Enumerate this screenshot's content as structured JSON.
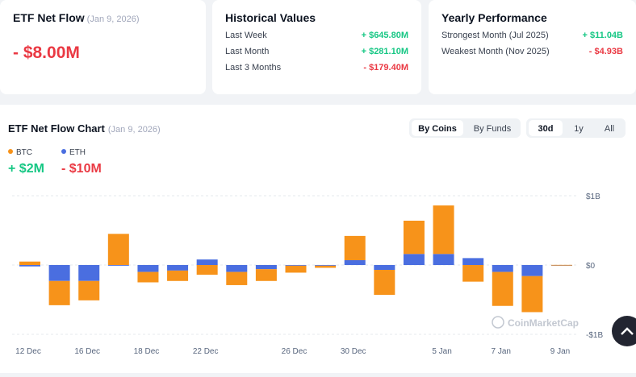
{
  "cards": [
    {
      "title": "ETF Net Flow",
      "date": "(Jan 9, 2026)",
      "value": "- $8.00M"
    },
    {
      "title": "Historical Values",
      "rows": [
        [
          "Last Week",
          "+ $645.80M"
        ],
        [
          "Last Month",
          "+ $281.10M"
        ],
        [
          "Last 3 Months",
          "- $179.40M"
        ]
      ]
    },
    {
      "title": "Yearly Performance",
      "rows": [
        [
          "Strongest Month (Jul 2025)",
          "+ $11.04B"
        ],
        [
          "Weakest Month (Nov 2025)",
          "- $4.93B"
        ]
      ]
    }
  ],
  "controls": {
    "view": [
      "By Coins",
      "By Funds"
    ],
    "range": [
      "30d",
      "1y",
      "All"
    ]
  },
  "watermark": "CoinMarketCap",
  "chart_data": {
    "type": "stacked-bar",
    "title": "ETF Net Flow Chart",
    "date": "(Jan 9, 2026)",
    "categories": [
      "12 Dec",
      null,
      "16 Dec",
      null,
      "18 Dec",
      null,
      "22 Dec",
      null,
      null,
      "26 Dec",
      null,
      "30 Dec",
      null,
      null,
      "5 Jan",
      null,
      "7 Jan",
      null,
      "9 Jan"
    ],
    "series": [
      {
        "name": "BTC",
        "color": "#f7931a",
        "total_label": "+ $2M",
        "values": [
          0.05,
          -0.35,
          -0.28,
          0.45,
          -0.15,
          -0.15,
          -0.14,
          -0.19,
          -0.17,
          -0.1,
          -0.03,
          0.35,
          -0.36,
          0.48,
          0.7,
          -0.24,
          -0.49,
          -0.52,
          0.002
        ]
      },
      {
        "name": "ETH",
        "color": "#4a6ee0",
        "total_label": "- $10M",
        "values": [
          -0.02,
          -0.23,
          -0.23,
          -0.01,
          -0.1,
          -0.08,
          0.08,
          -0.1,
          -0.06,
          -0.01,
          -0.01,
          0.07,
          -0.07,
          0.16,
          0.16,
          0.1,
          -0.1,
          -0.16,
          -0.01
        ]
      }
    ],
    "ylim": [
      -1,
      1
    ],
    "yticks": [
      {
        "value": -1,
        "label": "-$1B"
      },
      {
        "value": 0,
        "label": "$0"
      },
      {
        "value": 1,
        "label": "$1B"
      }
    ],
    "grid": true
  }
}
